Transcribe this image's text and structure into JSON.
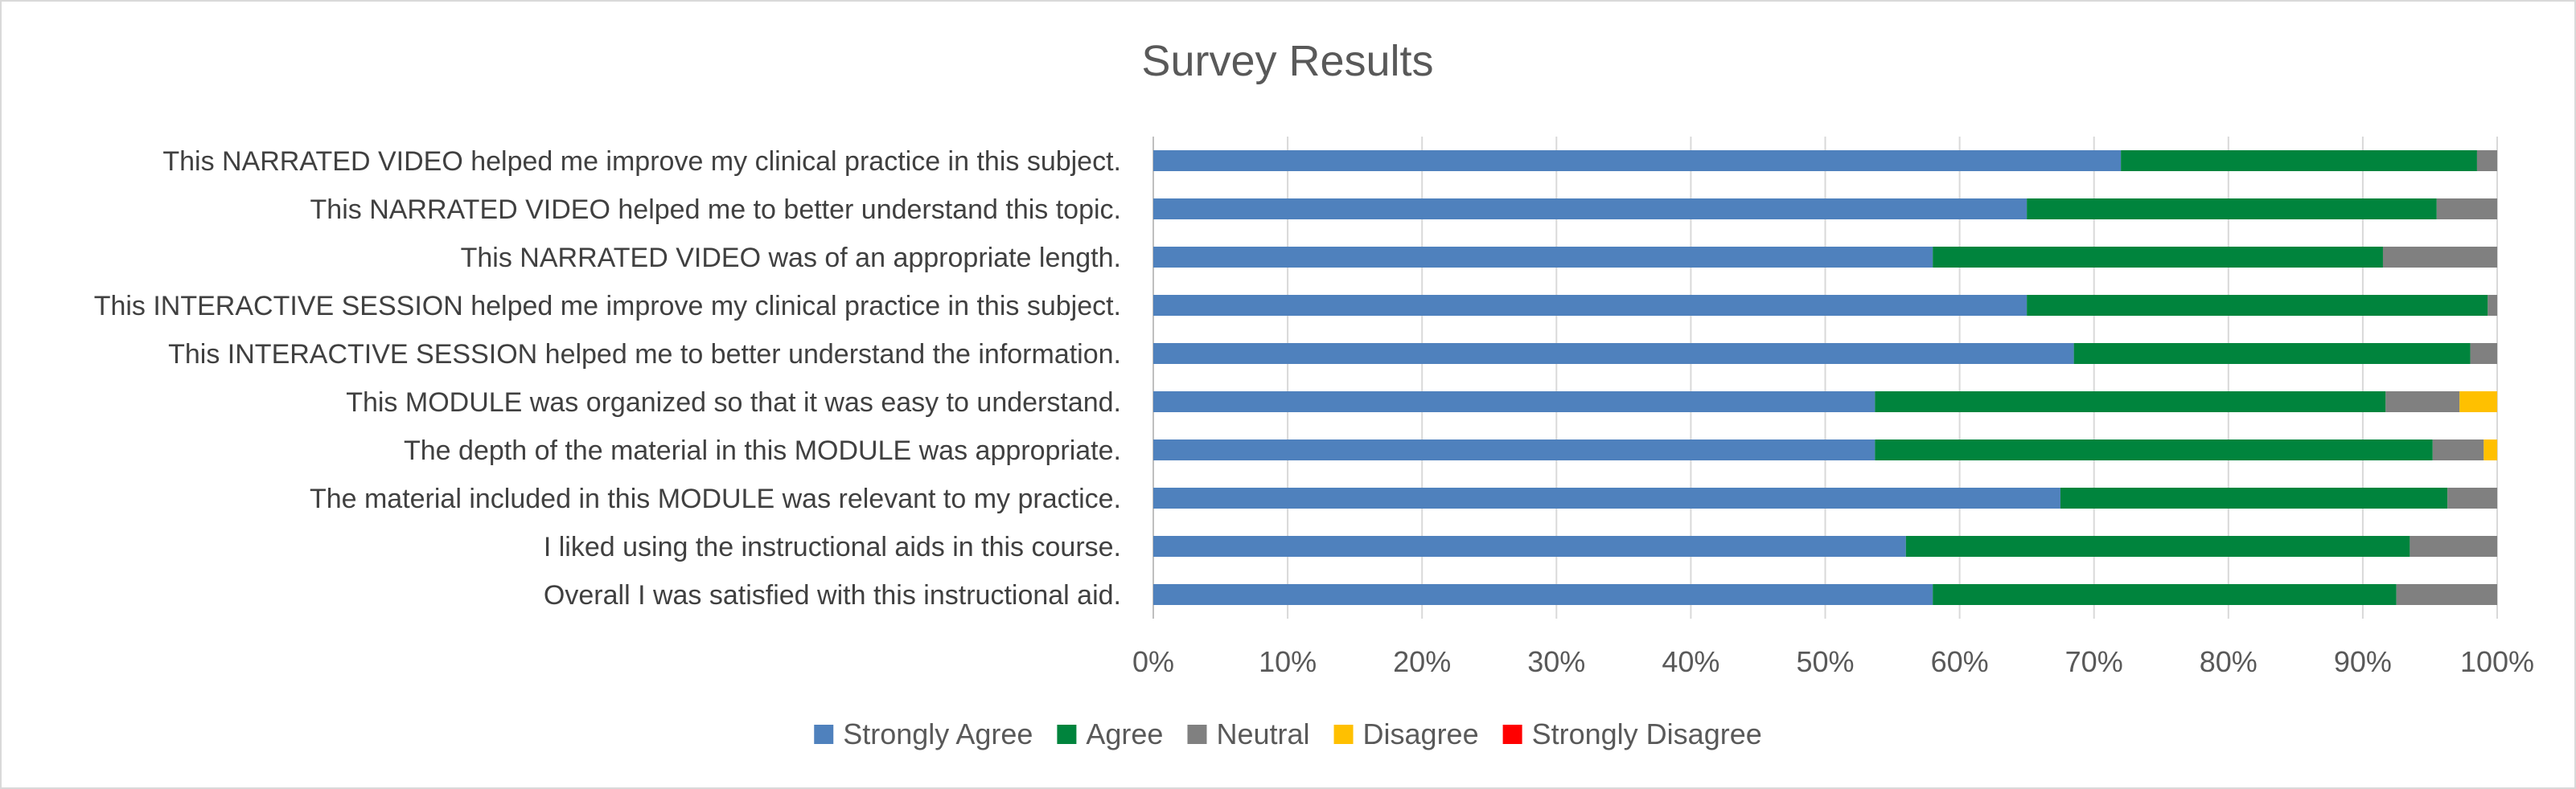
{
  "chart_data": {
    "type": "bar",
    "orientation": "horizontal",
    "stacked": "percent",
    "title": "Survey Results",
    "categories": [
      "This NARRATED VIDEO helped me improve my clinical practice in this subject.",
      "This NARRATED VIDEO helped me to better understand this topic.",
      "This NARRATED VIDEO was of an appropriate length.",
      "This INTERACTIVE SESSION helped me improve my clinical practice in this subject.",
      "This INTERACTIVE SESSION helped me to better understand the information.",
      "This MODULE was organized so that it was easy to understand.",
      "The depth of the material in this MODULE was appropriate.",
      "The material included in this MODULE was relevant to my practice.",
      "I liked using the instructional aids in this course.",
      "Overall I was satisfied with this instructional aid."
    ],
    "series": [
      {
        "name": "Strongly Agree",
        "color": "#4f81bd",
        "values": [
          72,
          65,
          58,
          65,
          68.5,
          53.7,
          53.7,
          67.5,
          56,
          58
        ]
      },
      {
        "name": "Agree",
        "color": "#00843d",
        "values": [
          26.5,
          30.5,
          33.5,
          34.3,
          29.5,
          38,
          41.5,
          28.8,
          37.5,
          34.5
        ]
      },
      {
        "name": "Neutral",
        "color": "#808080",
        "values": [
          1.5,
          4.5,
          8.5,
          0.7,
          2,
          5.5,
          3.8,
          3.7,
          6.5,
          7.5
        ]
      },
      {
        "name": "Disagree",
        "color": "#ffc000",
        "values": [
          0,
          0,
          0,
          0,
          0,
          2.8,
          1,
          0,
          0,
          0
        ]
      },
      {
        "name": "Strongly Disagree",
        "color": "#ff0000",
        "values": [
          0,
          0,
          0,
          0,
          0,
          0,
          0,
          0,
          0,
          0
        ]
      }
    ],
    "x_ticks": [
      "0%",
      "10%",
      "20%",
      "30%",
      "40%",
      "50%",
      "60%",
      "70%",
      "80%",
      "90%",
      "100%"
    ],
    "xlim": [
      0,
      100
    ],
    "grid": true,
    "legend_position": "bottom"
  }
}
